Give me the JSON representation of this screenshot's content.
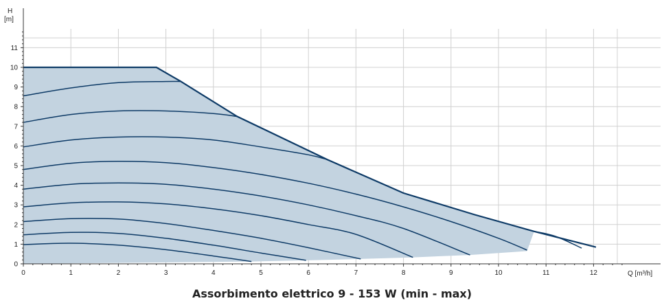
{
  "chart_data": {
    "type": "line",
    "xlabel": "Q [m³/h]",
    "ylabel_top": "H",
    "ylabel_unit": "[m]",
    "xlim": [
      0,
      12.6
    ],
    "ylim": [
      0,
      12
    ],
    "x_ticks": [
      0,
      1,
      2,
      3,
      4,
      5,
      6,
      7,
      8,
      9,
      10,
      11,
      12
    ],
    "y_ticks": [
      0,
      1,
      2,
      3,
      4,
      5,
      6,
      7,
      8,
      9,
      10,
      11
    ],
    "grid": true,
    "caption": "Assorbimento elettrico 9 - 153 W (min - max)",
    "colors": {
      "fill": "#c3d3e0",
      "line": "#0d3a66",
      "grid": "#d0d0d0"
    },
    "area": {
      "upper": [
        [
          0,
          10
        ],
        [
          2.8,
          10
        ],
        [
          3.3,
          9.3
        ],
        [
          4.5,
          7.5
        ],
        [
          6.4,
          5.3
        ],
        [
          8,
          3.6
        ],
        [
          9.5,
          2.5
        ],
        [
          10.75,
          1.65
        ]
      ],
      "lower": [
        [
          10.6,
          0.65
        ],
        [
          9.4,
          0.45
        ],
        [
          8.2,
          0.33
        ],
        [
          7.1,
          0.25
        ],
        [
          6,
          0.18
        ],
        [
          4.8,
          0.12
        ],
        [
          0,
          0
        ]
      ]
    },
    "envelope": [
      [
        0,
        10
      ],
      [
        2.8,
        10
      ],
      [
        3.3,
        9.3
      ],
      [
        4.5,
        7.5
      ],
      [
        6.4,
        5.3
      ],
      [
        8,
        3.6
      ],
      [
        9.5,
        2.5
      ],
      [
        10.75,
        1.65
      ],
      [
        12.05,
        0.85
      ]
    ],
    "series": [
      {
        "points": [
          [
            0,
            0.98
          ],
          [
            1,
            1.05
          ],
          [
            2,
            0.95
          ],
          [
            3,
            0.72
          ],
          [
            4,
            0.4
          ],
          [
            4.8,
            0.12
          ]
        ]
      },
      {
        "points": [
          [
            0,
            1.48
          ],
          [
            1,
            1.6
          ],
          [
            2,
            1.55
          ],
          [
            3,
            1.3
          ],
          [
            4,
            0.95
          ],
          [
            5,
            0.55
          ],
          [
            5.95,
            0.18
          ]
        ]
      },
      {
        "points": [
          [
            0,
            2.15
          ],
          [
            1,
            2.3
          ],
          [
            2,
            2.28
          ],
          [
            3,
            2.05
          ],
          [
            4,
            1.7
          ],
          [
            5,
            1.3
          ],
          [
            6,
            0.82
          ],
          [
            7.1,
            0.25
          ]
        ]
      },
      {
        "points": [
          [
            0,
            2.9
          ],
          [
            1,
            3.1
          ],
          [
            2,
            3.15
          ],
          [
            3,
            3.05
          ],
          [
            4,
            2.8
          ],
          [
            5,
            2.45
          ],
          [
            6,
            2.0
          ],
          [
            7,
            1.5
          ],
          [
            8.2,
            0.33
          ]
        ]
      },
      {
        "points": [
          [
            0,
            3.8
          ],
          [
            1,
            4.05
          ],
          [
            2,
            4.12
          ],
          [
            3,
            4.05
          ],
          [
            4,
            3.8
          ],
          [
            5,
            3.45
          ],
          [
            6,
            3.0
          ],
          [
            7,
            2.45
          ],
          [
            8,
            1.8
          ],
          [
            9.4,
            0.45
          ]
        ]
      },
      {
        "points": [
          [
            0,
            4.8
          ],
          [
            1,
            5.12
          ],
          [
            2,
            5.22
          ],
          [
            3,
            5.15
          ],
          [
            4,
            4.9
          ],
          [
            5,
            4.55
          ],
          [
            6,
            4.1
          ],
          [
            7,
            3.55
          ],
          [
            8,
            2.9
          ],
          [
            9,
            2.15
          ],
          [
            10,
            1.3
          ],
          [
            10.6,
            0.7
          ]
        ]
      },
      {
        "points": [
          [
            0,
            5.95
          ],
          [
            1,
            6.3
          ],
          [
            2,
            6.45
          ],
          [
            3,
            6.45
          ],
          [
            4,
            6.3
          ],
          [
            5,
            5.95
          ],
          [
            6,
            5.55
          ],
          [
            6.4,
            5.3
          ]
        ]
      },
      {
        "points": [
          [
            0,
            7.2
          ],
          [
            1,
            7.6
          ],
          [
            2,
            7.78
          ],
          [
            3,
            7.78
          ],
          [
            4,
            7.65
          ],
          [
            4.5,
            7.5
          ]
        ]
      },
      {
        "points": [
          [
            0,
            8.55
          ],
          [
            1,
            8.95
          ],
          [
            2,
            9.22
          ],
          [
            3,
            9.28
          ],
          [
            3.3,
            9.28
          ]
        ]
      },
      {
        "points": [
          [
            10.75,
            1.65
          ],
          [
            11.2,
            1.4
          ],
          [
            11.75,
            0.8
          ]
        ]
      }
    ]
  }
}
